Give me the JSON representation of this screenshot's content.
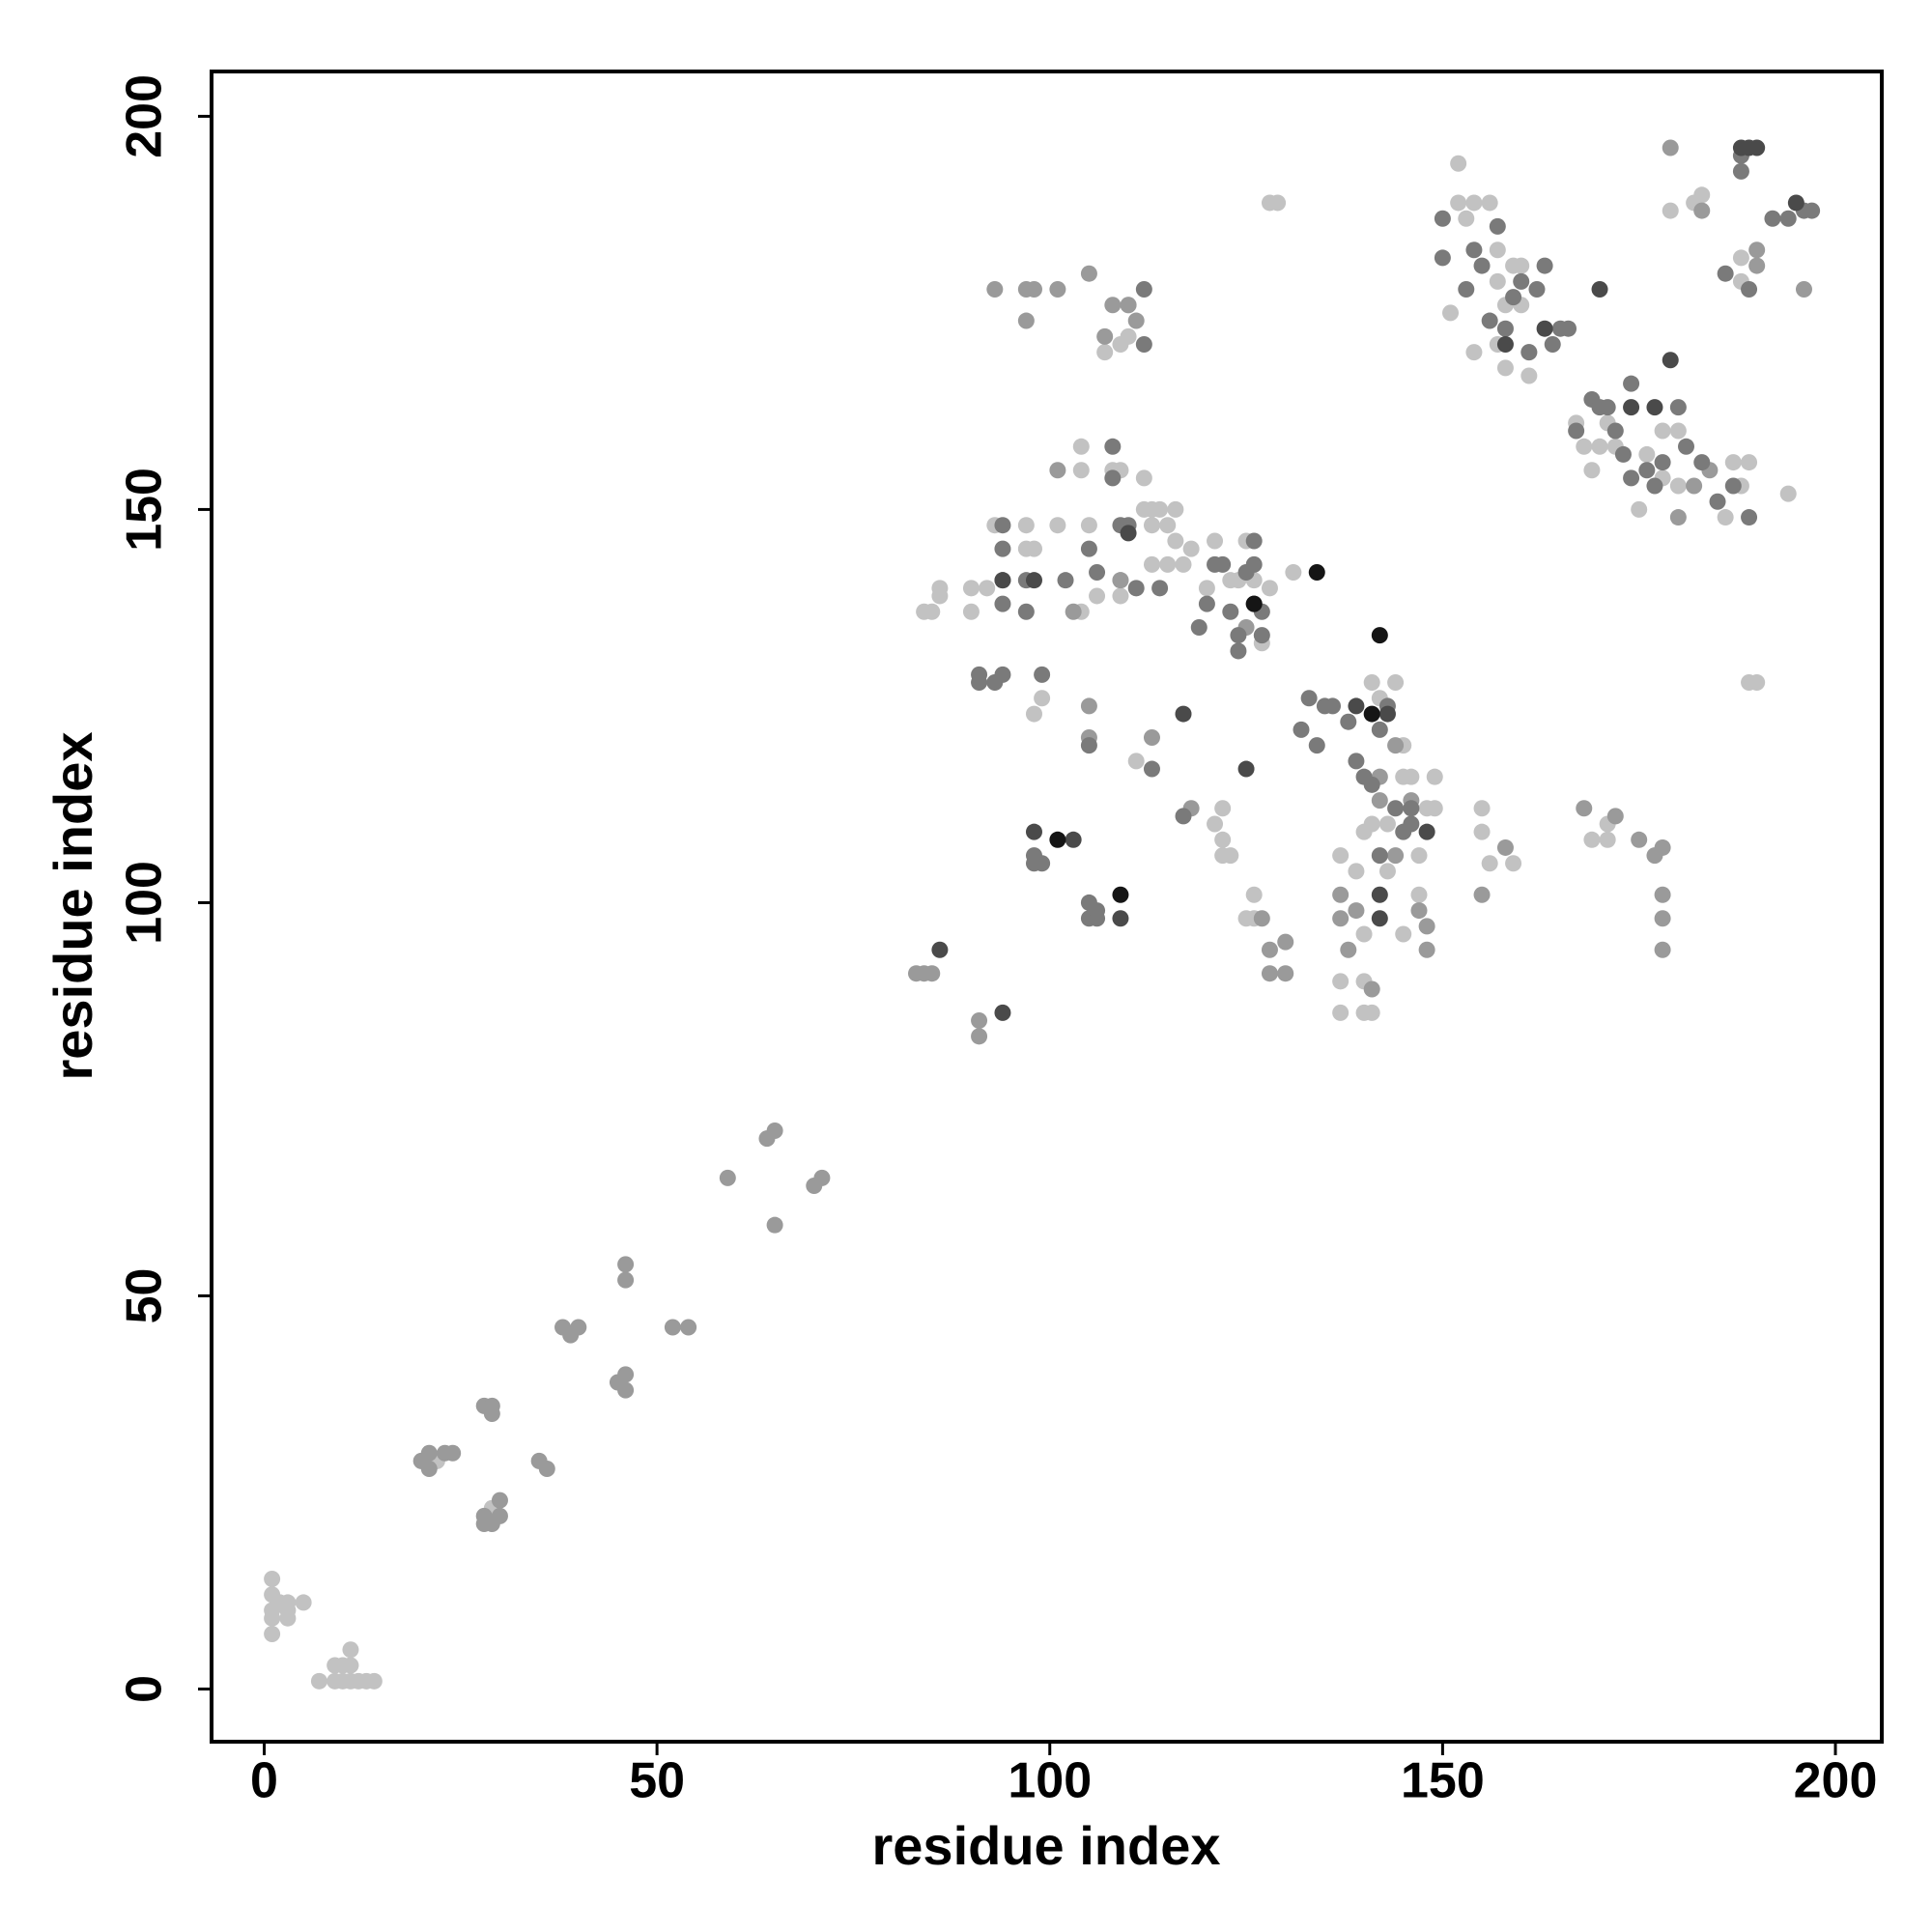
{
  "chart_data": {
    "type": "scatter",
    "x_label": "residue index",
    "y_label": "residue index",
    "xlim": [
      -6.7,
      205.9
    ],
    "ylim": [
      -6.7,
      205.7
    ],
    "xticks": [
      0,
      50,
      100,
      150,
      200
    ],
    "yticks": [
      0,
      50,
      100,
      150,
      200
    ],
    "series": [
      {
        "color": "#c2c2c2",
        "x": [
          1,
          1,
          1,
          1,
          1,
          2,
          3,
          3,
          3,
          5,
          7,
          9,
          9,
          10,
          10,
          11,
          11,
          11,
          12,
          14,
          13,
          22,
          29,
          84,
          85,
          86,
          86,
          90,
          90,
          92,
          93,
          97,
          97,
          98,
          98,
          99,
          101,
          104,
          104,
          104,
          105,
          106,
          108,
          109,
          109,
          109,
          109,
          110,
          107,
          110,
          111,
          112,
          112,
          113,
          113,
          113,
          114,
          115,
          115,
          116,
          116,
          117,
          118,
          120,
          121,
          121,
          122,
          122,
          122,
          123,
          123,
          124,
          125,
          125,
          126,
          126,
          126,
          127,
          128,
          128,
          129,
          131,
          137,
          137,
          137,
          139,
          140,
          140,
          140,
          140,
          141,
          141,
          141,
          142,
          143,
          143,
          144,
          145,
          145,
          145,
          146,
          147,
          147,
          148,
          149,
          149,
          151,
          152,
          152,
          153,
          154,
          154,
          155,
          155,
          156,
          156,
          157,
          157,
          157,
          158,
          158,
          159,
          159,
          160,
          160,
          161,
          161,
          169,
          171,
          171,
          167,
          168,
          169,
          170,
          171,
          172,
          175,
          176,
          178,
          178,
          179,
          180,
          180,
          182,
          183,
          186,
          188,
          188,
          189,
          190,
          194,
          188,
          187,
          189
        ],
        "values": [
          14,
          12,
          10,
          9,
          7,
          11,
          10,
          9,
          11,
          11,
          1,
          1,
          3,
          3,
          1,
          3,
          5,
          1,
          1,
          1,
          1,
          29,
          23,
          137,
          137,
          140,
          139,
          137,
          140,
          140,
          148,
          148,
          145,
          145,
          124,
          126,
          148,
          158,
          155,
          137,
          148,
          139,
          155,
          155,
          139,
          141,
          171,
          172,
          170,
          176,
          118,
          154,
          150,
          150,
          148,
          143,
          150,
          143,
          148,
          150,
          146,
          143,
          145,
          140,
          146,
          110,
          112,
          108,
          106,
          106,
          141,
          141,
          146,
          98,
          141,
          98,
          101,
          133,
          140,
          189,
          189,
          142,
          90,
          86,
          106,
          104,
          109,
          96,
          90,
          86,
          86,
          110,
          128,
          126,
          110,
          104,
          128,
          96,
          116,
          120,
          116,
          106,
          101,
          112,
          116,
          112,
          175,
          194,
          189,
          187,
          189,
          170,
          109,
          112,
          105,
          189,
          183,
          179,
          171,
          176,
          168,
          181,
          105,
          181,
          176,
          167,
          170,
          108,
          108,
          110,
          161,
          158,
          155,
          158,
          161,
          158,
          150,
          157,
          154,
          160,
          188,
          160,
          153,
          189,
          190,
          149,
          179,
          182,
          128,
          128,
          152,
          153,
          156,
          156
        ]
      },
      {
        "color": "#9a9a9a",
        "x": [
          20,
          21,
          21,
          23,
          24,
          28,
          28,
          28,
          29,
          29,
          29,
          30,
          30,
          35,
          36,
          38,
          39,
          40,
          45,
          46,
          46,
          46,
          46,
          52,
          54,
          59,
          64,
          65,
          65,
          70,
          71,
          83,
          84,
          85,
          91,
          91,
          93,
          97,
          97,
          98,
          101,
          101,
          103,
          105,
          105,
          105,
          107,
          108,
          109,
          110,
          111,
          113,
          118,
          125,
          127,
          128,
          128,
          130,
          130,
          137,
          137,
          138,
          139,
          141,
          142,
          142,
          144,
          144,
          146,
          147,
          148,
          148,
          155,
          158,
          168,
          172,
          175,
          177,
          178,
          178,
          178,
          178,
          179,
          182,
          184,
          183,
          190,
          190,
          196,
          180
        ],
        "values": [
          29,
          30,
          28,
          30,
          30,
          36,
          22,
          21,
          36,
          35,
          21,
          24,
          22,
          29,
          28,
          46,
          45,
          46,
          39,
          40,
          38,
          54,
          52,
          46,
          46,
          65,
          70,
          71,
          59,
          64,
          65,
          91,
          91,
          91,
          85,
          83,
          178,
          178,
          174,
          178,
          178,
          155,
          137,
          180,
          125,
          121,
          172,
          176,
          141,
          176,
          174,
          121,
          112,
          135,
          98,
          94,
          91,
          95,
          91,
          101,
          98,
          94,
          99,
          89,
          113,
          116,
          120,
          106,
          113,
          99,
          94,
          97,
          101,
          107,
          112,
          111,
          108,
          106,
          107,
          101,
          98,
          94,
          196,
          153,
          155,
          188,
          181,
          183,
          178,
          149
        ]
      },
      {
        "color": "#7a7a7a",
        "x": [
          91,
          91,
          93,
          94,
          94,
          94,
          94,
          94,
          97,
          97,
          98,
          98,
          99,
          99,
          102,
          105,
          105,
          105,
          106,
          106,
          105,
          106,
          108,
          108,
          109,
          110,
          111,
          112,
          112,
          113,
          114,
          117,
          119,
          120,
          121,
          122,
          123,
          124,
          124,
          125,
          126,
          126,
          127,
          127,
          132,
          133,
          134,
          135,
          136,
          138,
          139,
          140,
          141,
          142,
          142,
          143,
          144,
          145,
          146,
          146,
          150,
          150,
          153,
          154,
          155,
          156,
          157,
          158,
          159,
          160,
          161,
          162,
          163,
          164,
          165,
          166,
          167,
          169,
          170,
          171,
          172,
          173,
          174,
          174,
          176,
          177,
          178,
          180,
          181,
          183,
          185,
          186,
          187,
          188,
          188,
          189,
          189,
          192,
          194,
          196,
          197
        ],
        "values": [
          129,
          128,
          128,
          129,
          148,
          145,
          141,
          138,
          141,
          137,
          106,
          105,
          129,
          105,
          141,
          120,
          100,
          98,
          98,
          99,
          145,
          142,
          158,
          154,
          148,
          148,
          140,
          171,
          178,
          117,
          140,
          111,
          135,
          138,
          143,
          143,
          137,
          134,
          132,
          142,
          146,
          143,
          137,
          134,
          122,
          126,
          120,
          125,
          125,
          123,
          118,
          116,
          115,
          122,
          106,
          125,
          112,
          109,
          112,
          110,
          182,
          187,
          178,
          183,
          181,
          174,
          186,
          173,
          177,
          179,
          170,
          178,
          181,
          171,
          173,
          173,
          160,
          164,
          163,
          163,
          160,
          157,
          154,
          166,
          155,
          153,
          156,
          163,
          158,
          156,
          151,
          180,
          153,
          195,
          193,
          149,
          178,
          187,
          187,
          188,
          188
        ]
      },
      {
        "color": "#4a4a4a",
        "x": [
          86,
          94,
          94,
          98,
          98,
          103,
          109,
          110,
          117,
          125,
          126,
          139,
          142,
          142,
          143,
          148,
          158,
          163,
          170,
          174,
          177,
          179,
          188,
          189,
          190,
          195
        ],
        "values": [
          94,
          86,
          141,
          109,
          141,
          108,
          98,
          147,
          124,
          117,
          138,
          125,
          98,
          101,
          124,
          109,
          171,
          173,
          178,
          163,
          163,
          169,
          196,
          196,
          196,
          189
        ]
      },
      {
        "color": "#151515",
        "x": [
          101,
          109,
          134,
          142,
          126,
          141
        ],
        "values": [
          108,
          101,
          142,
          134,
          138,
          124
        ]
      }
    ]
  }
}
